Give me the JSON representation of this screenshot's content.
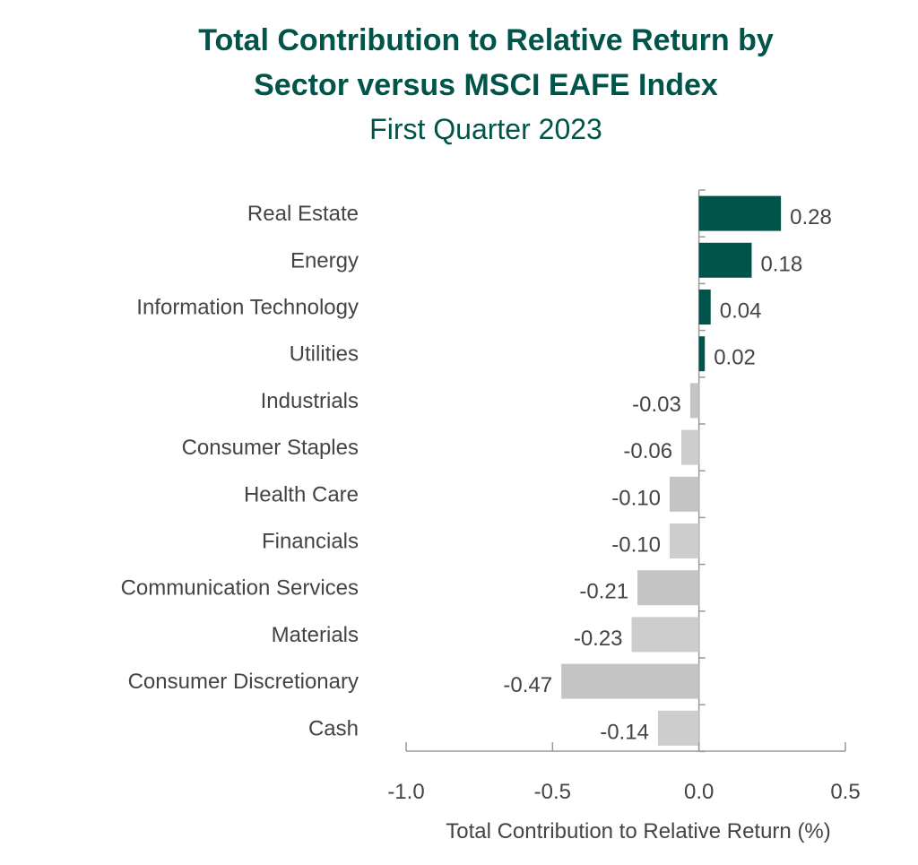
{
  "title_line1": "Total Contribution to Relative Return by",
  "title_line2": "Sector versus MSCI EAFE Index",
  "subtitle": "First Quarter 2023",
  "chart_data": {
    "type": "bar",
    "orientation": "horizontal",
    "title": "Total Contribution to Relative Return by Sector versus MSCI EAFE Index",
    "subtitle": "First Quarter 2023",
    "xlabel": "Total Contribution to Relative Return (%)",
    "xlim": [
      -1.0,
      0.5
    ],
    "xticks": [
      "-1.0",
      "-0.5",
      "0.0",
      "0.5"
    ],
    "grid": false,
    "categories": [
      "Real Estate",
      "Energy",
      "Information Technology",
      "Utilities",
      "Industrials",
      "Consumer Staples",
      "Health Care",
      "Financials",
      "Communication Services",
      "Materials",
      "Consumer Discretionary",
      "Cash"
    ],
    "values": [
      0.28,
      0.18,
      0.04,
      0.02,
      -0.03,
      -0.06,
      -0.1,
      -0.1,
      -0.21,
      -0.23,
      -0.47,
      -0.14
    ],
    "labels": [
      "0.28",
      "0.18",
      "0.04",
      "0.02",
      "-0.03",
      "-0.06",
      "-0.10",
      "-0.10",
      "-0.21",
      "-0.23",
      "-0.47",
      "-0.14"
    ],
    "colors": {
      "positive": "#00544a",
      "negative": [
        "#c4c4c4",
        "#cdcdcd"
      ]
    }
  }
}
